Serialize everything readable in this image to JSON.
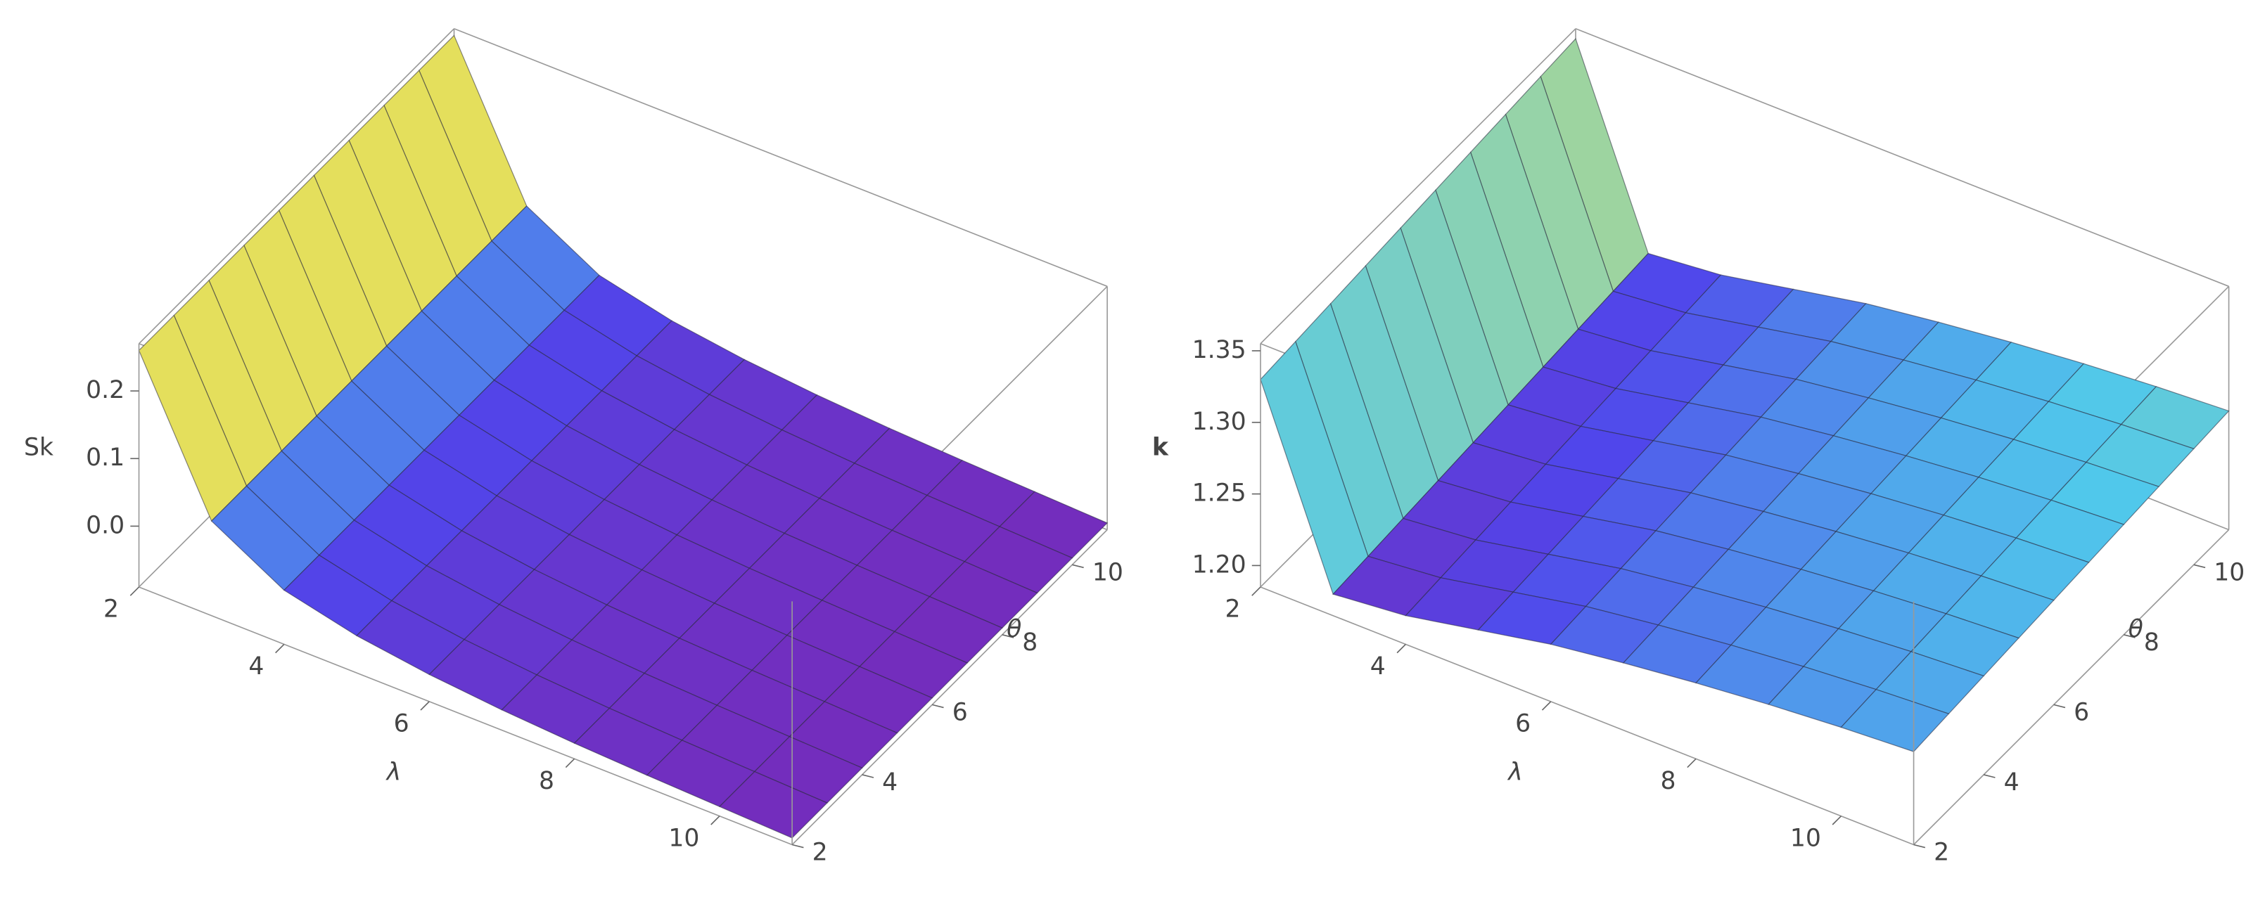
{
  "chart_data": [
    {
      "type": "surface",
      "xlabel": "λ",
      "ylabel": "θ",
      "zlabel": "Sk",
      "x": [
        2,
        3,
        4,
        5,
        6,
        7,
        8,
        9,
        10,
        11
      ],
      "y": [
        2,
        3,
        4,
        5,
        6,
        7,
        8,
        9,
        10,
        11
      ],
      "z": [
        [
          0.26,
          0.05,
          -0.01,
          -0.035,
          -0.05,
          -0.06,
          -0.067,
          -0.072,
          -0.076,
          -0.08
        ],
        [
          0.26,
          0.05,
          -0.01,
          -0.035,
          -0.05,
          -0.06,
          -0.067,
          -0.072,
          -0.076,
          -0.08
        ],
        [
          0.26,
          0.05,
          -0.01,
          -0.035,
          -0.05,
          -0.06,
          -0.067,
          -0.072,
          -0.076,
          -0.08
        ],
        [
          0.26,
          0.05,
          -0.01,
          -0.035,
          -0.05,
          -0.06,
          -0.067,
          -0.072,
          -0.076,
          -0.08
        ],
        [
          0.26,
          0.05,
          -0.01,
          -0.035,
          -0.05,
          -0.06,
          -0.067,
          -0.072,
          -0.076,
          -0.08
        ],
        [
          0.26,
          0.05,
          -0.01,
          -0.035,
          -0.05,
          -0.06,
          -0.067,
          -0.072,
          -0.076,
          -0.08
        ],
        [
          0.26,
          0.05,
          -0.01,
          -0.035,
          -0.05,
          -0.06,
          -0.067,
          -0.072,
          -0.076,
          -0.08
        ],
        [
          0.26,
          0.05,
          -0.01,
          -0.035,
          -0.05,
          -0.06,
          -0.067,
          -0.072,
          -0.076,
          -0.08
        ],
        [
          0.26,
          0.05,
          -0.01,
          -0.035,
          -0.05,
          -0.06,
          -0.067,
          -0.072,
          -0.076,
          -0.08
        ],
        [
          0.26,
          0.05,
          -0.01,
          -0.035,
          -0.05,
          -0.06,
          -0.067,
          -0.072,
          -0.076,
          -0.08
        ]
      ],
      "xlim": [
        2,
        11
      ],
      "ylim": [
        2,
        11
      ],
      "zlim": [
        -0.09,
        0.27
      ],
      "xticks": [
        2,
        4,
        6,
        8,
        10
      ],
      "yticks": [
        2,
        4,
        6,
        8,
        10
      ],
      "zticks": [
        {
          "value": 0,
          "label": "0.0"
        },
        0.1,
        0.2
      ]
    },
    {
      "type": "surface",
      "xlabel": "λ",
      "ylabel": "θ",
      "zlabel": "k",
      "x": [
        2,
        3,
        4,
        5,
        6,
        7,
        8,
        9,
        10,
        11
      ],
      "y": [
        2,
        3,
        4,
        5,
        6,
        7,
        8,
        9,
        10,
        11
      ],
      "z": [
        [
          1.33,
          1.2,
          1.205,
          1.215,
          1.225,
          1.232,
          1.238,
          1.243,
          1.247,
          1.25
        ],
        [
          1.332,
          1.202,
          1.207,
          1.217,
          1.227,
          1.234,
          1.24,
          1.245,
          1.249,
          1.252
        ],
        [
          1.334,
          1.204,
          1.209,
          1.219,
          1.229,
          1.236,
          1.242,
          1.247,
          1.251,
          1.254
        ],
        [
          1.336,
          1.206,
          1.211,
          1.221,
          1.231,
          1.238,
          1.244,
          1.249,
          1.253,
          1.256
        ],
        [
          1.338,
          1.208,
          1.213,
          1.223,
          1.233,
          1.24,
          1.246,
          1.251,
          1.255,
          1.258
        ],
        [
          1.34,
          1.21,
          1.215,
          1.225,
          1.235,
          1.242,
          1.248,
          1.253,
          1.257,
          1.26
        ],
        [
          1.342,
          1.212,
          1.217,
          1.227,
          1.237,
          1.244,
          1.25,
          1.255,
          1.259,
          1.262
        ],
        [
          1.344,
          1.214,
          1.219,
          1.229,
          1.239,
          1.246,
          1.252,
          1.257,
          1.261,
          1.264
        ],
        [
          1.346,
          1.216,
          1.221,
          1.231,
          1.241,
          1.248,
          1.254,
          1.259,
          1.263,
          1.266
        ],
        [
          1.348,
          1.218,
          1.223,
          1.233,
          1.243,
          1.25,
          1.256,
          1.261,
          1.265,
          1.268
        ]
      ],
      "xlim": [
        2,
        11
      ],
      "ylim": [
        2,
        11
      ],
      "zlim": [
        1.185,
        1.355
      ],
      "xticks": [
        2,
        4,
        6,
        8,
        10
      ],
      "yticks": [
        2,
        4,
        6,
        8,
        10
      ],
      "zticks": [
        {
          "value": 1.2,
          "label": "1.20"
        },
        1.25,
        {
          "value": 1.3,
          "label": "1.30"
        },
        1.35
      ]
    }
  ]
}
